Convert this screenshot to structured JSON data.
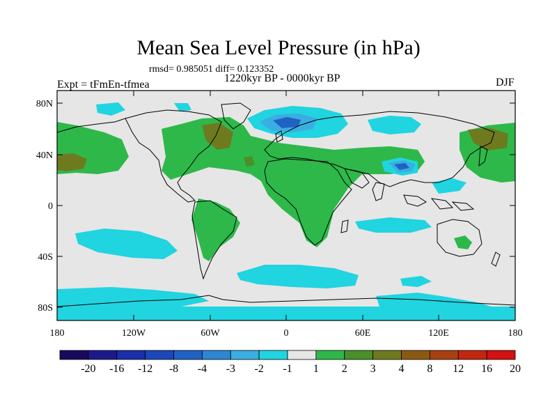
{
  "title": "Mean Sea Level Pressure (in hPa)",
  "stats": "rmsd= 0.985051 diff= 0.123352",
  "period": "1220kyr BP - 0000kyr BP",
  "experiment": "Expt = tFmEn-tfmea",
  "season": "DJF",
  "lat_labels": [
    "80N",
    "40N",
    "0",
    "40S",
    "80S"
  ],
  "lon_labels": [
    "180",
    "120W",
    "60W",
    "0",
    "60E",
    "120E",
    "180"
  ],
  "colorbar": {
    "labels": [
      "-20",
      "-16",
      "-12",
      "-8",
      "-4",
      "-3",
      "-2",
      "-1",
      "1",
      "2",
      "3",
      "4",
      "8",
      "12",
      "16",
      "20"
    ],
    "colors": [
      "#1a0a5e",
      "#1c1a8a",
      "#1a2fa8",
      "#1b47b8",
      "#1f62c4",
      "#2d86d4",
      "#3aaee0",
      "#20d4e0",
      "#e6e6e6",
      "#2eb84a",
      "#4a8f2a",
      "#6e7a1e",
      "#8a5a12",
      "#a84010",
      "#c02810",
      "#d41010"
    ]
  },
  "colors": {
    "ocean_bg": "#e6e6e6",
    "pos1": "#2eb84a",
    "pos2": "#4a8f2a",
    "pos3": "#6e7a1e",
    "neg1": "#20d4e0",
    "neg2": "#3aaee0",
    "neg3": "#1f62c4"
  }
}
